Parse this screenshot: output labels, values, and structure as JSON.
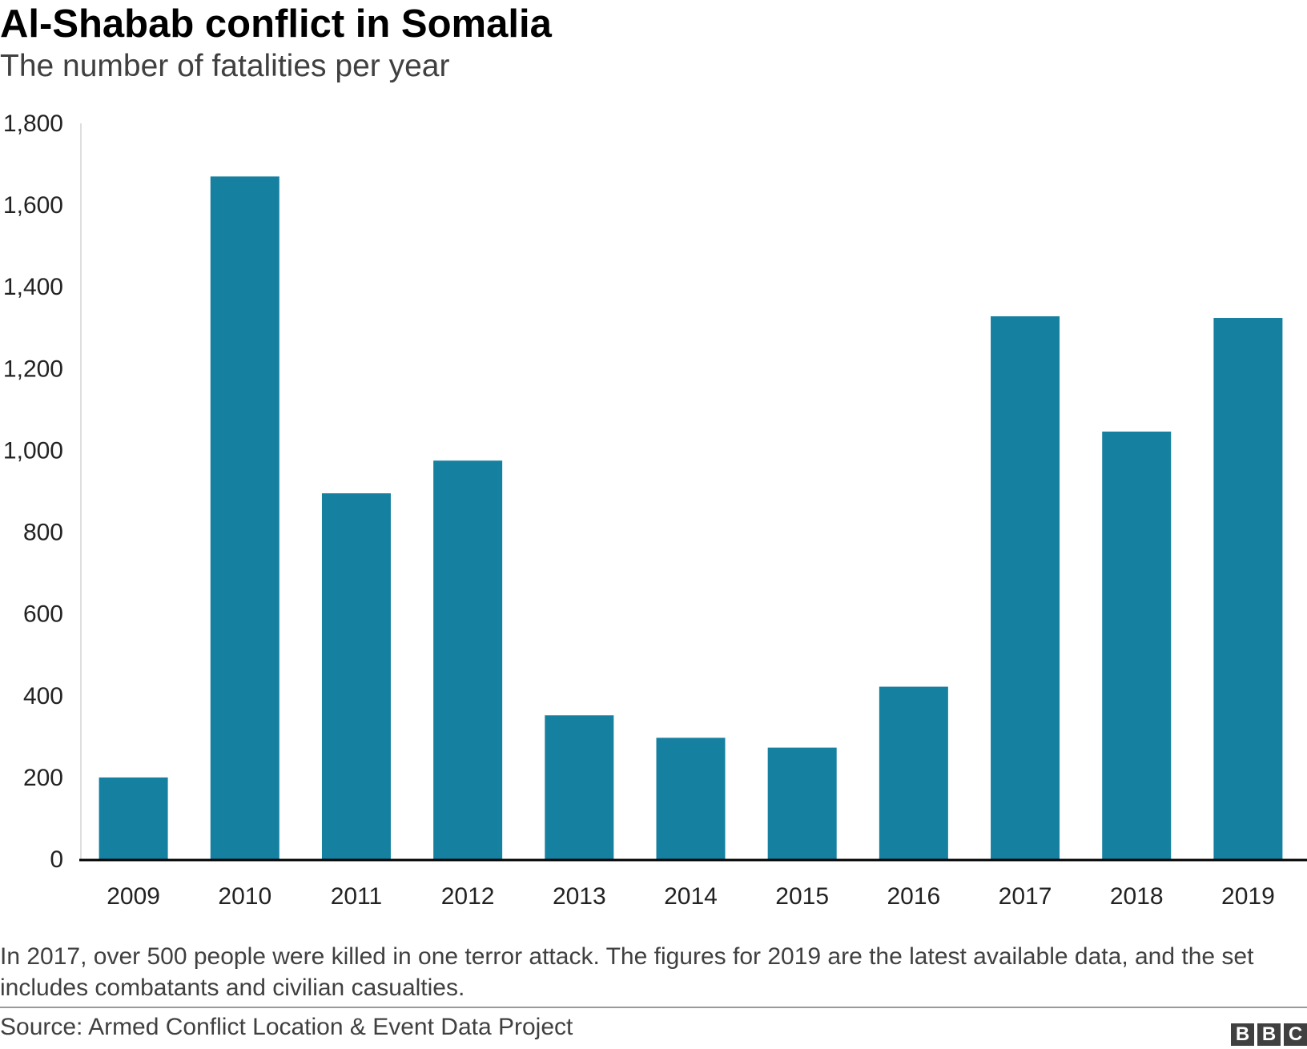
{
  "header": {
    "title": "Al-Shabab conflict in Somalia",
    "subtitle": "The number of fatalities per year"
  },
  "chart_data": {
    "type": "bar",
    "title": "Al-Shabab conflict in Somalia",
    "subtitle": "The number of fatalities per year",
    "xlabel": "",
    "ylabel": "",
    "categories": [
      "2009",
      "2010",
      "2011",
      "2012",
      "2013",
      "2014",
      "2015",
      "2016",
      "2017",
      "2018",
      "2019"
    ],
    "values": [
      200,
      1670,
      895,
      975,
      352,
      297,
      273,
      422,
      1328,
      1046,
      1324
    ],
    "ylim": [
      0,
      1800
    ],
    "yticks": [
      0,
      200,
      400,
      600,
      800,
      1000,
      1200,
      1400,
      1600,
      1800
    ],
    "ytick_labels": [
      "0",
      "200",
      "400",
      "600",
      "800",
      "1,000",
      "1,200",
      "1,400",
      "1,600",
      "1,800"
    ],
    "grid": false,
    "bar_color": "#1580a0",
    "axis_color": "#000000"
  },
  "note": "In 2017, over 500 people were killed in one terror attack. The figures for 2019 are the latest available data, and the set includes combatants and civilian casualties.",
  "footer": {
    "source": "Source: Armed Conflict Location & Event Data Project",
    "logo_letters": [
      "B",
      "B",
      "C"
    ]
  }
}
